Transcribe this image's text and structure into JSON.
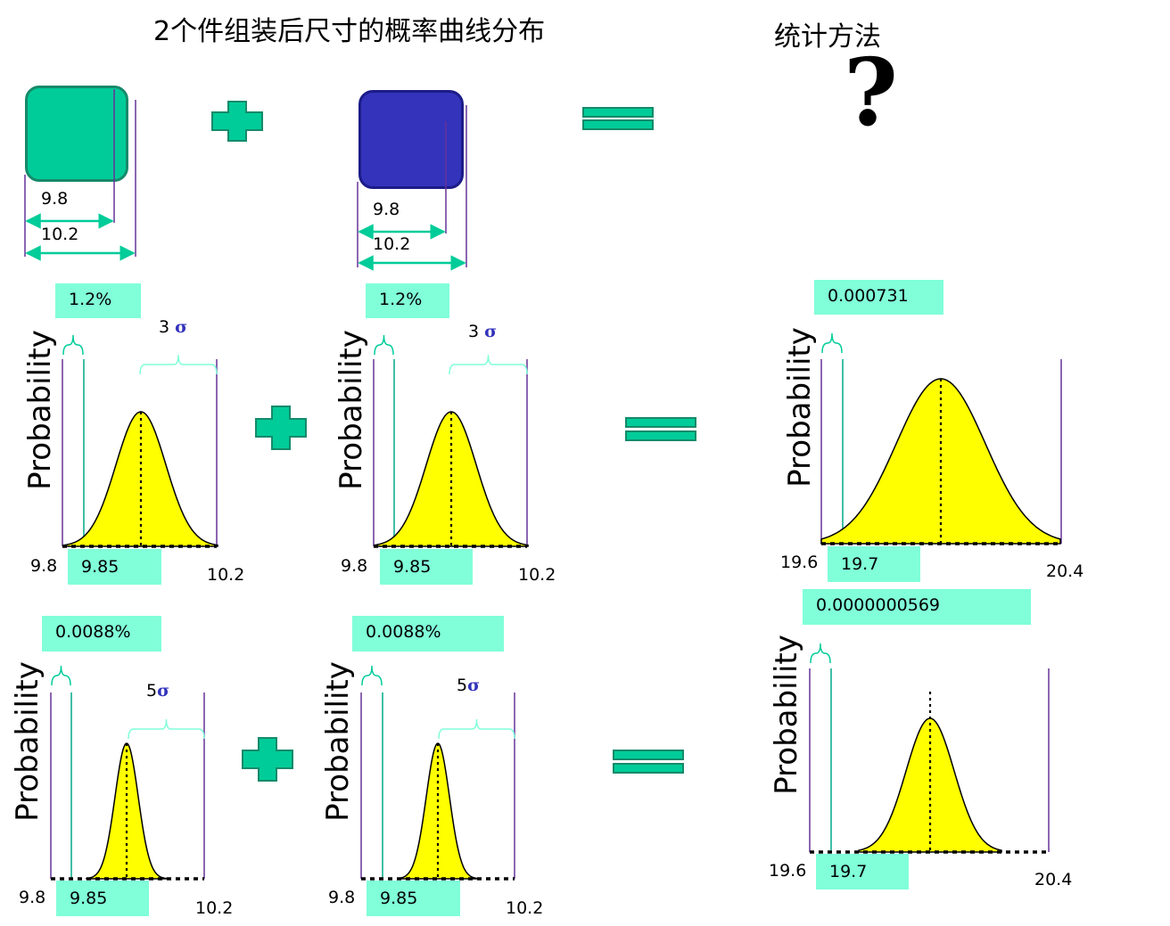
{
  "title": "2个件组装后尺寸的概率曲线分布",
  "method_label": "统计方法",
  "question_mark": "?",
  "parts": [
    {
      "min_label": "9.8",
      "max_label": "10.2",
      "color": "#00cc99"
    },
    {
      "min_label": "9.8",
      "max_label": "10.2",
      "color": "#3333bb"
    }
  ],
  "row3": {
    "part_pct": "1.2%",
    "sigma_label": "3 σ",
    "y_label": "Probability",
    "x_min": "9.8",
    "x_lsl": "9.85",
    "x_max": "10.2",
    "result_value": "0.000731",
    "result_min": "19.6",
    "result_lsl": "19.7",
    "result_max": "20.4"
  },
  "row5": {
    "part_pct": "0.0088%",
    "sigma_label": "5σ",
    "y_label": "Probability",
    "x_min": "9.8",
    "x_lsl": "9.85",
    "x_max": "10.2",
    "result_value": "0.0000000569",
    "result_min": "19.6",
    "result_lsl": "19.7",
    "result_max": "20.4"
  },
  "colors": {
    "green": "#00cc99",
    "blue": "#3333bb",
    "tag_bg": "#80ffd9",
    "curve_fill": "#ffff00",
    "limit_line": "#663399"
  }
}
